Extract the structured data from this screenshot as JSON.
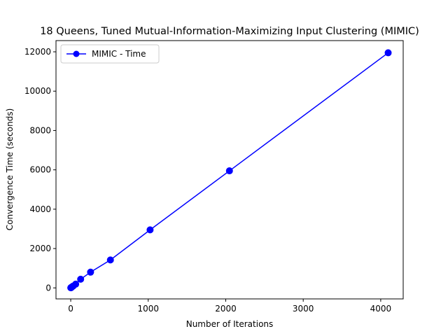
{
  "chart_data": {
    "type": "line",
    "title": "18 Queens, Tuned Mutual-Information-Maximizing Input Clustering (MIMIC)",
    "xlabel": "Number of Iterations",
    "ylabel": "Convergence Time (seconds)",
    "xlim": [
      -190,
      4290
    ],
    "ylim": [
      -560,
      12570
    ],
    "xticks": [
      0,
      1000,
      2000,
      3000,
      4000
    ],
    "yticks": [
      0,
      2000,
      4000,
      6000,
      8000,
      10000,
      12000
    ],
    "grid": false,
    "legend_position": "top-left",
    "series": [
      {
        "name": "MIMIC - Time",
        "color": "#0000ff",
        "marker": "circle",
        "x": [
          1,
          2,
          4,
          8,
          16,
          32,
          64,
          128,
          256,
          512,
          1024,
          2048,
          4096
        ],
        "y": [
          4,
          8,
          12,
          25,
          50,
          95,
          190,
          440,
          800,
          1420,
          2950,
          5950,
          11950
        ]
      }
    ]
  }
}
